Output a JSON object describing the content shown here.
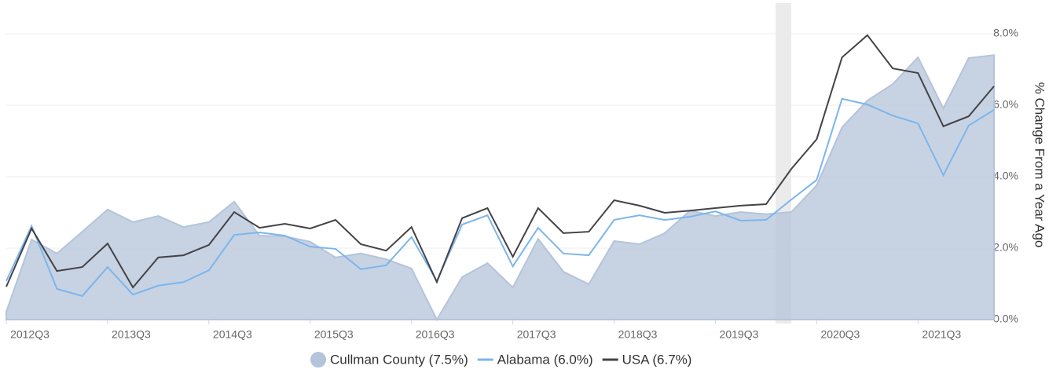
{
  "chart_data": {
    "type": "area_line",
    "y_axis_label": "% Change From a Year Ago",
    "categories": [
      "2012Q3",
      null,
      null,
      null,
      "2013Q3",
      null,
      null,
      null,
      "2014Q3",
      null,
      null,
      null,
      "2015Q3",
      null,
      null,
      null,
      "2016Q3",
      null,
      null,
      null,
      "2017Q3",
      null,
      null,
      null,
      "2018Q3",
      null,
      null,
      null,
      "2019Q3",
      null,
      null,
      null,
      "2020Q3",
      null,
      null,
      null,
      "2021Q3",
      null,
      null,
      null
    ],
    "series": [
      {
        "name": "Cullman County (7.5%)",
        "kind": "area",
        "color": "#b4c4da",
        "values": [
          0.22,
          2.24,
          1.85,
          2.46,
          3.08,
          2.73,
          2.9,
          2.59,
          2.73,
          3.3,
          2.35,
          2.33,
          2.18,
          1.74,
          1.85,
          1.69,
          1.43,
          0.0,
          1.19,
          1.58,
          0.9,
          2.26,
          1.34,
          0.99,
          2.2,
          2.11,
          2.42,
          3.05,
          2.9,
          3.01,
          2.95,
          3.01,
          3.76,
          5.38,
          6.13,
          6.59,
          7.34,
          5.91,
          7.32,
          7.4
        ]
      },
      {
        "name": "Alabama (6.0%)",
        "kind": "line",
        "color": "#7cb5ec",
        "values": [
          1.08,
          2.62,
          0.86,
          0.66,
          1.47,
          0.7,
          0.95,
          1.05,
          1.38,
          2.37,
          2.44,
          2.35,
          2.04,
          1.98,
          1.41,
          1.52,
          2.31,
          1.08,
          2.66,
          2.92,
          1.49,
          2.57,
          1.85,
          1.8,
          2.79,
          2.92,
          2.79,
          2.88,
          3.03,
          2.77,
          2.79,
          3.36,
          3.91,
          6.18,
          6.02,
          5.71,
          5.49,
          4.04,
          5.43,
          5.87
        ]
      },
      {
        "name": "USA (6.7%)",
        "kind": "line",
        "color": "#434348",
        "values": [
          0.92,
          2.55,
          1.36,
          1.47,
          2.13,
          0.9,
          1.74,
          1.8,
          2.09,
          3.01,
          2.57,
          2.68,
          2.55,
          2.79,
          2.11,
          1.93,
          2.59,
          1.05,
          2.84,
          3.12,
          1.76,
          3.12,
          2.42,
          2.46,
          3.34,
          3.19,
          2.99,
          3.05,
          3.12,
          3.19,
          3.23,
          4.22,
          5.05,
          7.34,
          7.96,
          7.03,
          6.9,
          5.41,
          5.69,
          6.53
        ]
      }
    ],
    "ylim": [
      0,
      8.9
    ],
    "yticks": [
      {
        "value": 0,
        "label": "0.0%"
      },
      {
        "value": 2,
        "label": "2.0%"
      },
      {
        "value": 4,
        "label": "4.0%"
      },
      {
        "value": 6,
        "label": "6.0%"
      },
      {
        "value": 8,
        "label": "8.0%"
      }
    ],
    "grid": true
  }
}
